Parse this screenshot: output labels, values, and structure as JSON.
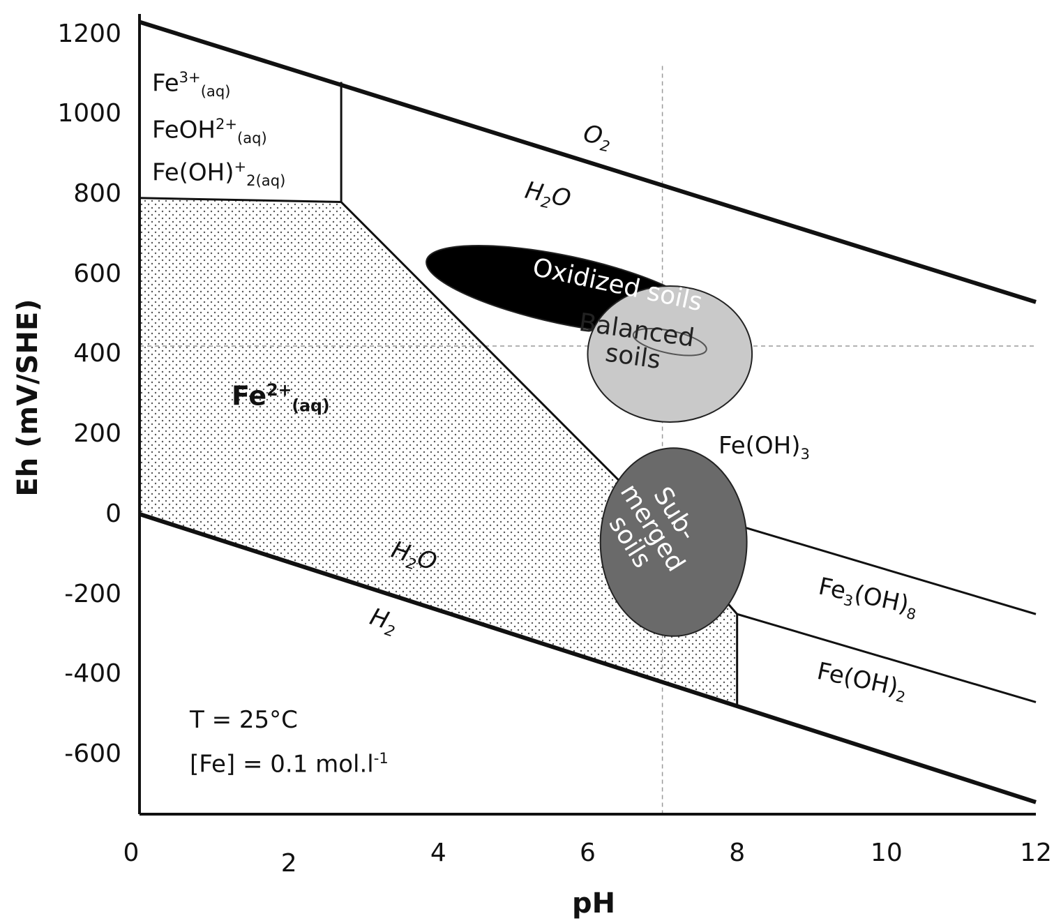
{
  "chart_data": {
    "type": "line",
    "xlabel": "pH",
    "ylabel": "Eh (mV/SHE)",
    "xlim": [
      0,
      12
    ],
    "ylim": [
      -750,
      1250
    ],
    "x_ticks": [
      "0",
      "2",
      "4",
      "6",
      "8",
      "10",
      "12"
    ],
    "y_ticks": [
      "1200",
      "1000",
      "800",
      "600",
      "400",
      "200",
      "0",
      "-200",
      "-400",
      "-600"
    ],
    "grid": false,
    "series": [
      {
        "points": [
          [
            0,
            1230
          ],
          [
            12,
            530
          ]
        ],
        "style": "bold"
      },
      {
        "points": [
          [
            0,
            0
          ],
          [
            12,
            -720
          ]
        ],
        "style": "bold"
      },
      {
        "points": [
          [
            0,
            790
          ],
          [
            2.7,
            780
          ],
          [
            6.6,
            50
          ],
          [
            8.0,
            -250
          ]
        ]
      },
      {
        "points": [
          [
            2.7,
            1080
          ],
          [
            2.7,
            780
          ]
        ]
      },
      {
        "points": [
          [
            8.0,
            -250
          ],
          [
            8.0,
            -480
          ]
        ]
      },
      {
        "points": [
          [
            6.6,
            50
          ],
          [
            12,
            -250
          ]
        ]
      },
      {
        "points": [
          [
            8.0,
            -250
          ],
          [
            12,
            -470
          ]
        ]
      }
    ],
    "reference_lines": {
      "x": 7,
      "y": 420,
      "style": "dashed"
    },
    "ellipses": [
      {
        "label": "Oxidized soils",
        "cx": 5.7,
        "cy": 560,
        "rx": 1.9,
        "ry": 85,
        "angle": 12,
        "fill": "#000000",
        "text_color": "#ffffff"
      },
      {
        "label": "Balanced soils",
        "cx": 7.1,
        "cy": 400,
        "rx": 1.1,
        "ry": 170,
        "angle": 0,
        "fill": "#c9c9c9",
        "text_color": "#222222"
      },
      {
        "label": "Sub-merged soils",
        "cx": 7.15,
        "cy": -70,
        "rx": 0.98,
        "ry": 235,
        "angle": 0,
        "fill": "#6a6a6a",
        "text_color": "#ffffff"
      }
    ],
    "annotations": {
      "fe3_top": {
        "base": "Fe",
        "sup": "3+",
        "sub": "(aq)"
      },
      "feoh_top": {
        "base": "FeOH",
        "sup": "2+",
        "sub": "(aq)"
      },
      "feoh2_top": {
        "base": "Fe(OH)",
        "sup": "+",
        "sub": "2(aq)"
      },
      "fe2": {
        "base": "Fe",
        "sup": "2+",
        "sub": "(aq)"
      },
      "o2": {
        "base": "O",
        "sub": "2"
      },
      "h2o_upper": {
        "base1": "H",
        "sub": "2",
        "base2": "O"
      },
      "h2o_lower": {
        "base1": "H",
        "sub": "2",
        "base2": "O"
      },
      "h2": {
        "base": "H",
        "sub": "2"
      },
      "feoh3": {
        "base": "Fe(OH)",
        "sub": "3"
      },
      "fe3oh8": {
        "base1": "Fe",
        "sub1": "3",
        "base2": "(OH)",
        "sub2": "8"
      },
      "feoh2": {
        "base": "Fe(OH)",
        "sub": "2"
      },
      "temp": "T = 25°C",
      "conc": {
        "base": "[Fe] = 0.1 mol.l",
        "sup": "-1"
      }
    },
    "colors": {
      "hatch_region": "#e8e8e8",
      "line": "#111111"
    }
  }
}
